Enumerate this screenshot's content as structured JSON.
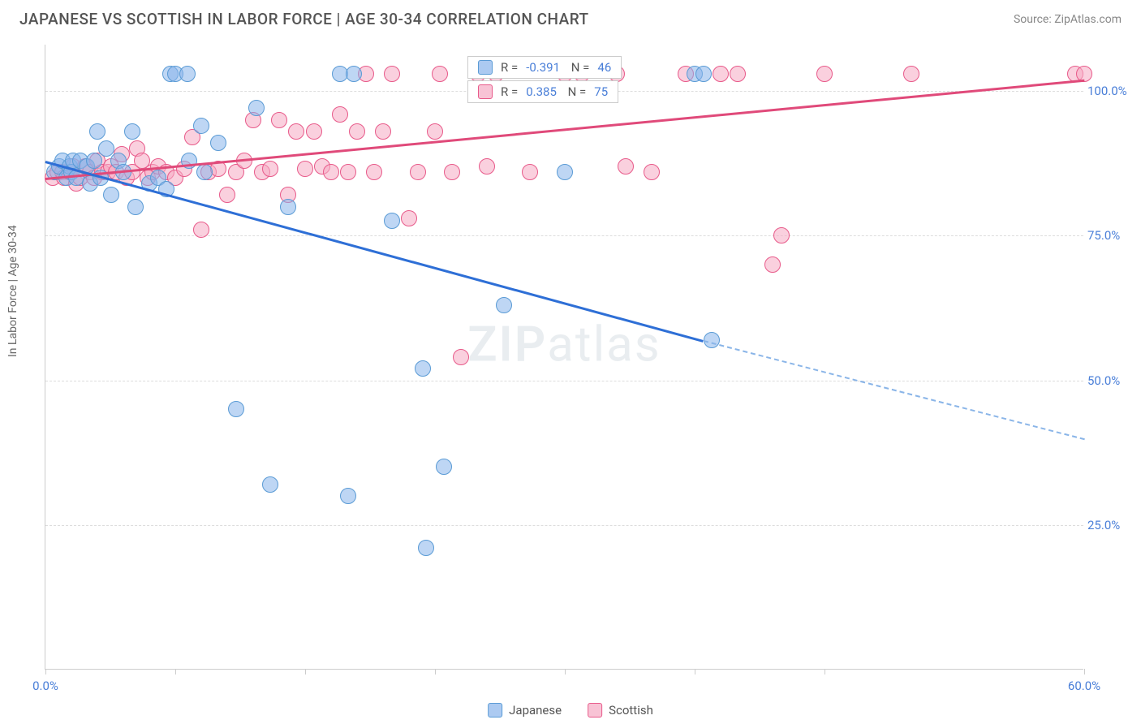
{
  "header": {
    "title": "JAPANESE VS SCOTTISH IN LABOR FORCE | AGE 30-34 CORRELATION CHART",
    "source": "Source: ZipAtlas.com"
  },
  "chart": {
    "type": "scatter",
    "ylabel": "In Labor Force | Age 30-34",
    "xlim": [
      0,
      60
    ],
    "ylim": [
      0,
      108
    ],
    "yticks": [
      25.0,
      50.0,
      75.0,
      100.0
    ],
    "ytick_labels": [
      "25.0%",
      "50.0%",
      "75.0%",
      "100.0%"
    ],
    "xticks": [
      0,
      7.5,
      15,
      22.5,
      30,
      37.5,
      45,
      60
    ],
    "xtick_labels": {
      "0": "0.0%",
      "60": "60.0%"
    },
    "background_color": "#ffffff",
    "grid_color": "#dddddd",
    "point_radius": 10,
    "series": {
      "japanese": {
        "label": "Japanese",
        "fill_color": "#89b4eb",
        "fill_opacity": 0.55,
        "stroke_color": "#5a9bd5",
        "r_value": "-0.391",
        "n_value": "46",
        "trend": {
          "x1": 0,
          "y1": 88,
          "x2": 38,
          "y2": 57,
          "color": "#2e6fd6",
          "width": 2.5,
          "dash_x2": 60,
          "dash_y2": 40
        },
        "points": [
          [
            0.5,
            86
          ],
          [
            0.8,
            87
          ],
          [
            1.0,
            88
          ],
          [
            1.2,
            85
          ],
          [
            1.4,
            87
          ],
          [
            1.5,
            86
          ],
          [
            1.6,
            88
          ],
          [
            1.8,
            85
          ],
          [
            2.0,
            88
          ],
          [
            2.4,
            87
          ],
          [
            2.6,
            84
          ],
          [
            2.8,
            88
          ],
          [
            3.0,
            93
          ],
          [
            3.2,
            85
          ],
          [
            3.5,
            90
          ],
          [
            3.8,
            82
          ],
          [
            4.2,
            88
          ],
          [
            4.5,
            86
          ],
          [
            5.0,
            93
          ],
          [
            5.2,
            80
          ],
          [
            6.0,
            84
          ],
          [
            6.5,
            85
          ],
          [
            7.0,
            83
          ],
          [
            7.2,
            103
          ],
          [
            7.5,
            103
          ],
          [
            8.2,
            103
          ],
          [
            8.3,
            88
          ],
          [
            9.2,
            86
          ],
          [
            9.0,
            94
          ],
          [
            10.0,
            91
          ],
          [
            12.2,
            97
          ],
          [
            14.0,
            80
          ],
          [
            17.0,
            103
          ],
          [
            17.8,
            103
          ],
          [
            20.0,
            77.5
          ],
          [
            21.8,
            52
          ],
          [
            22.0,
            21
          ],
          [
            23.0,
            35
          ],
          [
            11.0,
            45
          ],
          [
            13.0,
            32
          ],
          [
            17.5,
            30
          ],
          [
            26.5,
            63
          ],
          [
            30.0,
            86
          ],
          [
            37.5,
            103
          ],
          [
            38.0,
            103
          ],
          [
            38.5,
            57
          ]
        ]
      },
      "scottish": {
        "label": "Scottish",
        "fill_color": "#f5aac3",
        "fill_opacity": 0.55,
        "stroke_color": "#e85a8a",
        "r_value": "0.385",
        "n_value": "75",
        "trend": {
          "x1": 0,
          "y1": 85,
          "x2": 60,
          "y2": 102,
          "color": "#e04a7a",
          "width": 2.5
        },
        "points": [
          [
            0.4,
            85
          ],
          [
            0.7,
            86
          ],
          [
            1.0,
            86
          ],
          [
            1.1,
            85
          ],
          [
            1.4,
            86
          ],
          [
            1.6,
            87
          ],
          [
            1.8,
            84
          ],
          [
            2.0,
            85
          ],
          [
            2.3,
            87
          ],
          [
            2.6,
            86
          ],
          [
            2.8,
            85
          ],
          [
            3.0,
            88
          ],
          [
            3.3,
            86
          ],
          [
            3.6,
            86
          ],
          [
            3.8,
            87
          ],
          [
            4.1,
            86
          ],
          [
            4.4,
            89
          ],
          [
            4.7,
            85
          ],
          [
            5.0,
            86
          ],
          [
            5.3,
            90
          ],
          [
            5.6,
            88
          ],
          [
            5.9,
            85
          ],
          [
            6.2,
            86
          ],
          [
            6.5,
            87
          ],
          [
            7.0,
            86
          ],
          [
            7.5,
            85
          ],
          [
            8.0,
            86.5
          ],
          [
            8.5,
            92
          ],
          [
            9.0,
            76
          ],
          [
            9.4,
            86
          ],
          [
            10.0,
            86.5
          ],
          [
            10.5,
            82
          ],
          [
            11.0,
            86
          ],
          [
            11.5,
            88
          ],
          [
            12.0,
            95
          ],
          [
            12.5,
            86
          ],
          [
            13.0,
            86.5
          ],
          [
            13.5,
            95
          ],
          [
            14.0,
            82
          ],
          [
            14.5,
            93
          ],
          [
            15.0,
            86.5
          ],
          [
            15.5,
            93
          ],
          [
            16.0,
            87
          ],
          [
            16.5,
            86
          ],
          [
            17.0,
            96
          ],
          [
            17.5,
            86
          ],
          [
            18.0,
            93
          ],
          [
            18.5,
            103
          ],
          [
            19.0,
            86
          ],
          [
            19.5,
            93
          ],
          [
            20.0,
            103
          ],
          [
            21.0,
            78
          ],
          [
            21.5,
            86
          ],
          [
            22.5,
            93
          ],
          [
            22.8,
            103
          ],
          [
            23.5,
            86
          ],
          [
            24.0,
            54
          ],
          [
            25.0,
            103
          ],
          [
            25.5,
            87
          ],
          [
            26.0,
            103
          ],
          [
            28.0,
            86
          ],
          [
            30.0,
            103
          ],
          [
            31.0,
            103
          ],
          [
            33.0,
            103
          ],
          [
            33.5,
            87
          ],
          [
            35.0,
            86
          ],
          [
            37.0,
            103
          ],
          [
            39.0,
            103
          ],
          [
            40.0,
            103
          ],
          [
            42.0,
            70
          ],
          [
            42.5,
            75
          ],
          [
            45.0,
            103
          ],
          [
            50.0,
            103
          ],
          [
            59.5,
            103
          ],
          [
            60.0,
            103
          ]
        ]
      }
    },
    "watermark": "ZIPatlas",
    "legend_stats": [
      {
        "series": "japanese",
        "r_label": "R =",
        "n_label": "N ="
      },
      {
        "series": "scottish",
        "r_label": "R =",
        "n_label": "N ="
      }
    ]
  }
}
